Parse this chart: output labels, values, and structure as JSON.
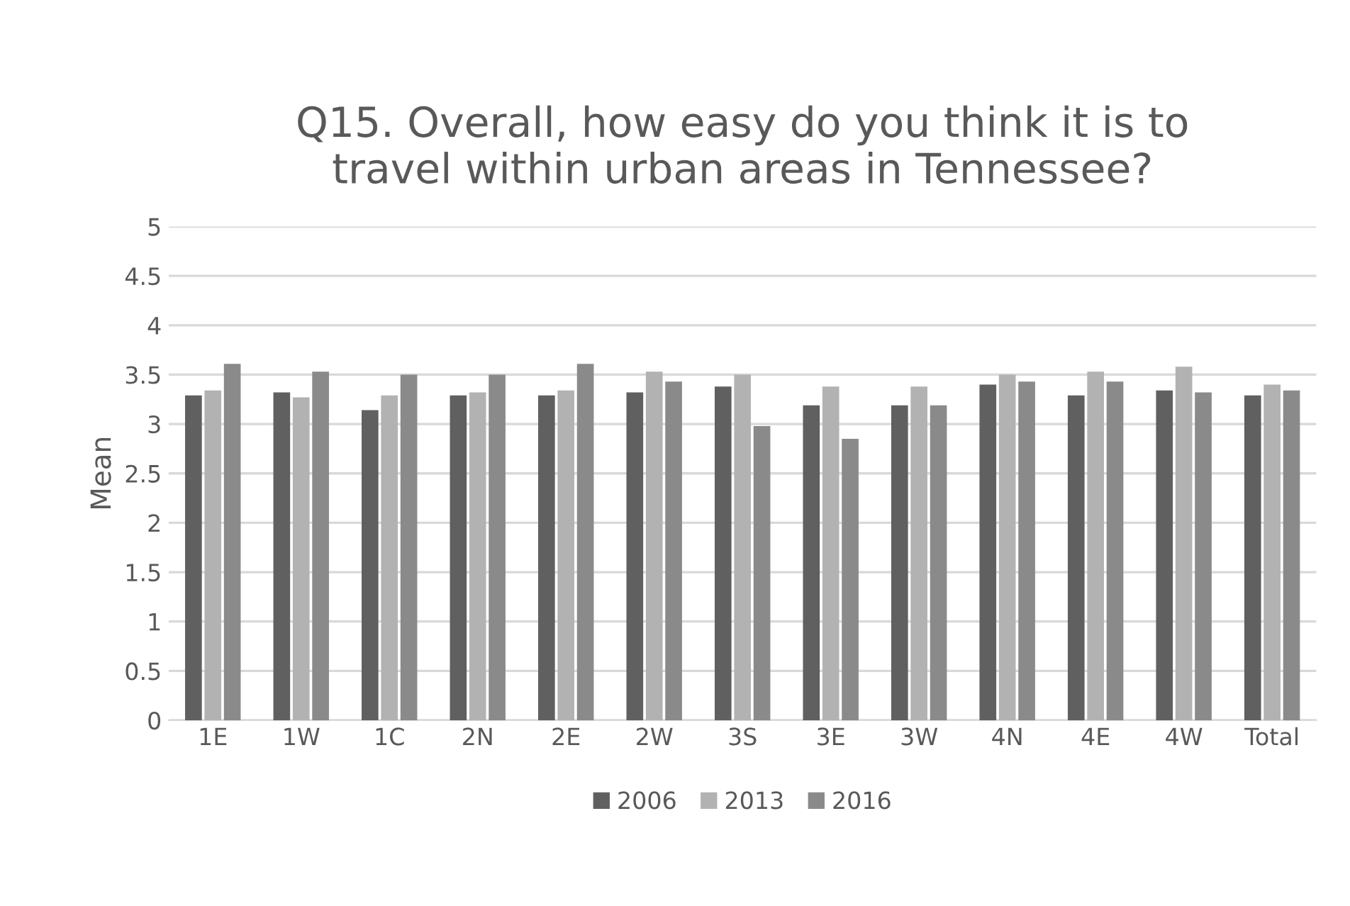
{
  "chart_data": {
    "type": "bar",
    "title": "Q15. Overall, how easy do you think it is to\ntravel within urban areas in Tennessee?",
    "ylabel": "Mean",
    "categories": [
      "1E",
      "1W",
      "1C",
      "2N",
      "2E",
      "2W",
      "3S",
      "3E",
      "3W",
      "4N",
      "4E",
      "4W",
      "Total"
    ],
    "series": [
      {
        "name": "2006",
        "color": "#606060",
        "values": [
          3.29,
          3.32,
          3.14,
          3.29,
          3.29,
          3.32,
          3.38,
          3.19,
          3.19,
          3.4,
          3.29,
          3.34,
          3.29
        ]
      },
      {
        "name": "2013",
        "color": "#b2b2b2",
        "values": [
          3.34,
          3.27,
          3.29,
          3.32,
          3.34,
          3.53,
          3.5,
          3.38,
          3.38,
          3.5,
          3.53,
          3.58,
          3.4
        ]
      },
      {
        "name": "2016",
        "color": "#8a8a8a",
        "values": [
          3.61,
          3.53,
          3.5,
          3.5,
          3.61,
          3.43,
          2.98,
          2.85,
          3.19,
          3.43,
          3.43,
          3.32,
          3.34
        ]
      }
    ],
    "ylim": [
      0,
      5
    ],
    "yticks": [
      0,
      0.5,
      1,
      1.5,
      2,
      2.5,
      3,
      3.5,
      4,
      4.5,
      5
    ],
    "grid": "y",
    "legend": "bottom"
  }
}
